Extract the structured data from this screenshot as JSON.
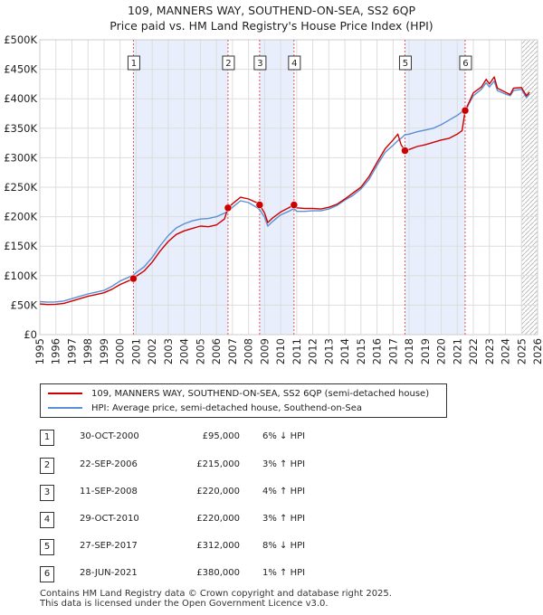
{
  "title_line1": "109, MANNERS WAY, SOUTHEND-ON-SEA, SS2 6QP",
  "title_line2": "Price paid vs. HM Land Registry's House Price Index (HPI)",
  "colors": {
    "price_line": "#cc0000",
    "hpi_line": "#5b8fd6",
    "shade": "#e8eefb",
    "grid": "#dddddd",
    "hatch": "#bbbbbb"
  },
  "legend": {
    "price_label": "109, MANNERS WAY, SOUTHEND-ON-SEA, SS2 6QP (semi-detached house)",
    "hpi_label": "HPI: Average price, semi-detached house, Southend-on-Sea"
  },
  "sales": [
    {
      "num": "1",
      "date": "30-OCT-2000",
      "price": "£95,000",
      "delta": "6% ↓ HPI"
    },
    {
      "num": "2",
      "date": "22-SEP-2006",
      "price": "£215,000",
      "delta": "3% ↑ HPI"
    },
    {
      "num": "3",
      "date": "11-SEP-2008",
      "price": "£220,000",
      "delta": "4% ↑ HPI"
    },
    {
      "num": "4",
      "date": "29-OCT-2010",
      "price": "£220,000",
      "delta": "3% ↑ HPI"
    },
    {
      "num": "5",
      "date": "27-SEP-2017",
      "price": "£312,000",
      "delta": "8% ↓ HPI"
    },
    {
      "num": "6",
      "date": "28-JUN-2021",
      "price": "£380,000",
      "delta": "1% ↑ HPI"
    }
  ],
  "footer_line1": "Contains HM Land Registry data © Crown copyright and database right 2025.",
  "footer_line2": "This data is licensed under the Open Government Licence v3.0.",
  "chart_data": {
    "type": "line",
    "title": "109, MANNERS WAY, SOUTHEND-ON-SEA, SS2 6QP — Price paid vs. HM Land Registry's House Price Index (HPI)",
    "xlabel": "",
    "ylabel": "",
    "xlim": [
      1995,
      2026
    ],
    "ylim": [
      0,
      500000
    ],
    "grid": true,
    "legend_position": "bottom",
    "x_ticks": [
      "1995",
      "1996",
      "1997",
      "1998",
      "1999",
      "2000",
      "2001",
      "2002",
      "2003",
      "2004",
      "2005",
      "2006",
      "2007",
      "2008",
      "2009",
      "2010",
      "2011",
      "2012",
      "2013",
      "2014",
      "2015",
      "2016",
      "2017",
      "2018",
      "2019",
      "2020",
      "2021",
      "2022",
      "2023",
      "2024",
      "2025",
      "2026"
    ],
    "y_ticks": [
      {
        "value": 0,
        "label": "£0"
      },
      {
        "value": 50000,
        "label": "£50K"
      },
      {
        "value": 100000,
        "label": "£100K"
      },
      {
        "value": 150000,
        "label": "£150K"
      },
      {
        "value": 200000,
        "label": "£200K"
      },
      {
        "value": 250000,
        "label": "£250K"
      },
      {
        "value": 300000,
        "label": "£300K"
      },
      {
        "value": 350000,
        "label": "£350K"
      },
      {
        "value": 400000,
        "label": "£400K"
      },
      {
        "value": 450000,
        "label": "£450K"
      },
      {
        "value": 500000,
        "label": "£500K"
      }
    ],
    "shaded_periods": [
      [
        2000.83,
        2006.72
      ],
      [
        2008.69,
        2010.83
      ],
      [
        2017.74,
        2021.49
      ]
    ],
    "future_hatch_start": 2025.0,
    "markers": [
      {
        "label": "1",
        "x": 2000.83,
        "y": 95000
      },
      {
        "label": "2",
        "x": 2006.72,
        "y": 215000
      },
      {
        "label": "3",
        "x": 2008.69,
        "y": 220000
      },
      {
        "label": "4",
        "x": 2010.83,
        "y": 220000
      },
      {
        "label": "5",
        "x": 2017.74,
        "y": 312000
      },
      {
        "label": "6",
        "x": 2021.49,
        "y": 380000
      }
    ],
    "series": [
      {
        "name": "109, MANNERS WAY, SOUTHEND-ON-SEA, SS2 6QP (semi-detached house)",
        "x": [
          1995.0,
          1995.5,
          1996.0,
          1996.5,
          1997.0,
          1997.5,
          1998.0,
          1998.5,
          1999.0,
          1999.5,
          2000.0,
          2000.5,
          2000.83,
          2001.0,
          2001.5,
          2002.0,
          2002.5,
          2003.0,
          2003.5,
          2004.0,
          2004.5,
          2005.0,
          2005.5,
          2006.0,
          2006.5,
          2006.72,
          2007.0,
          2007.5,
          2008.0,
          2008.5,
          2008.69,
          2009.0,
          2009.2,
          2009.5,
          2010.0,
          2010.5,
          2010.83,
          2011.0,
          2011.5,
          2012.0,
          2012.5,
          2013.0,
          2013.5,
          2014.0,
          2014.5,
          2015.0,
          2015.5,
          2016.0,
          2016.5,
          2017.0,
          2017.3,
          2017.5,
          2017.74,
          2018.0,
          2018.5,
          2019.0,
          2019.5,
          2020.0,
          2020.5,
          2021.0,
          2021.3,
          2021.49,
          2021.7,
          2022.0,
          2022.5,
          2022.8,
          2023.0,
          2023.3,
          2023.5,
          2024.0,
          2024.3,
          2024.5,
          2025.0,
          2025.3,
          2025.5
        ],
        "values": [
          52000,
          51000,
          51500,
          53000,
          57000,
          61000,
          65000,
          68000,
          71000,
          77000,
          85000,
          91000,
          95000,
          99000,
          108000,
          123000,
          142000,
          158000,
          170000,
          176000,
          180000,
          184000,
          183000,
          186000,
          196000,
          215000,
          222000,
          233000,
          230000,
          224000,
          220000,
          206000,
          190000,
          198000,
          208000,
          215000,
          220000,
          215000,
          214000,
          214000,
          213000,
          216000,
          221000,
          230000,
          240000,
          250000,
          268000,
          292000,
          315000,
          330000,
          340000,
          322000,
          312000,
          314000,
          319000,
          322000,
          326000,
          330000,
          333000,
          340000,
          346000,
          380000,
          392000,
          410000,
          420000,
          433000,
          425000,
          437000,
          418000,
          411000,
          407000,
          418000,
          419000,
          405000,
          411000
        ]
      },
      {
        "name": "HPI: Average price, semi-detached house, Southend-on-Sea",
        "x": [
          1995.0,
          1995.5,
          1996.0,
          1996.5,
          1997.0,
          1997.5,
          1998.0,
          1998.5,
          1999.0,
          1999.5,
          2000.0,
          2000.5,
          2000.83,
          2001.0,
          2001.5,
          2002.0,
          2002.5,
          2003.0,
          2003.5,
          2004.0,
          2004.5,
          2005.0,
          2005.5,
          2006.0,
          2006.5,
          2006.72,
          2007.0,
          2007.5,
          2008.0,
          2008.5,
          2008.69,
          2009.0,
          2009.2,
          2009.5,
          2010.0,
          2010.5,
          2010.83,
          2011.0,
          2011.5,
          2012.0,
          2012.5,
          2013.0,
          2013.5,
          2014.0,
          2014.5,
          2015.0,
          2015.5,
          2016.0,
          2016.5,
          2017.0,
          2017.3,
          2017.5,
          2017.74,
          2018.0,
          2018.5,
          2019.0,
          2019.5,
          2020.0,
          2020.5,
          2021.0,
          2021.3,
          2021.49,
          2021.7,
          2022.0,
          2022.5,
          2022.8,
          2023.0,
          2023.3,
          2023.5,
          2024.0,
          2024.3,
          2024.5,
          2025.0,
          2025.3,
          2025.5
        ],
        "values": [
          56000,
          55000,
          55500,
          57000,
          61000,
          65000,
          69000,
          72000,
          75000,
          82000,
          91000,
          97000,
          101000,
          105000,
          115000,
          131000,
          151000,
          168000,
          181000,
          188000,
          193000,
          196000,
          197000,
          200000,
          206000,
          209000,
          216000,
          227000,
          224000,
          216000,
          212000,
          199000,
          184000,
          192000,
          203000,
          209000,
          214000,
          209000,
          209000,
          210000,
          210000,
          213000,
          219000,
          228000,
          236000,
          247000,
          263000,
          287000,
          309000,
          321000,
          329000,
          333000,
          339000,
          340000,
          344000,
          347000,
          350000,
          356000,
          364000,
          372000,
          378000,
          377000,
          390000,
          405000,
          416000,
          427000,
          420000,
          430000,
          414000,
          408000,
          405000,
          414000,
          416000,
          402000,
          408000
        ]
      }
    ]
  }
}
